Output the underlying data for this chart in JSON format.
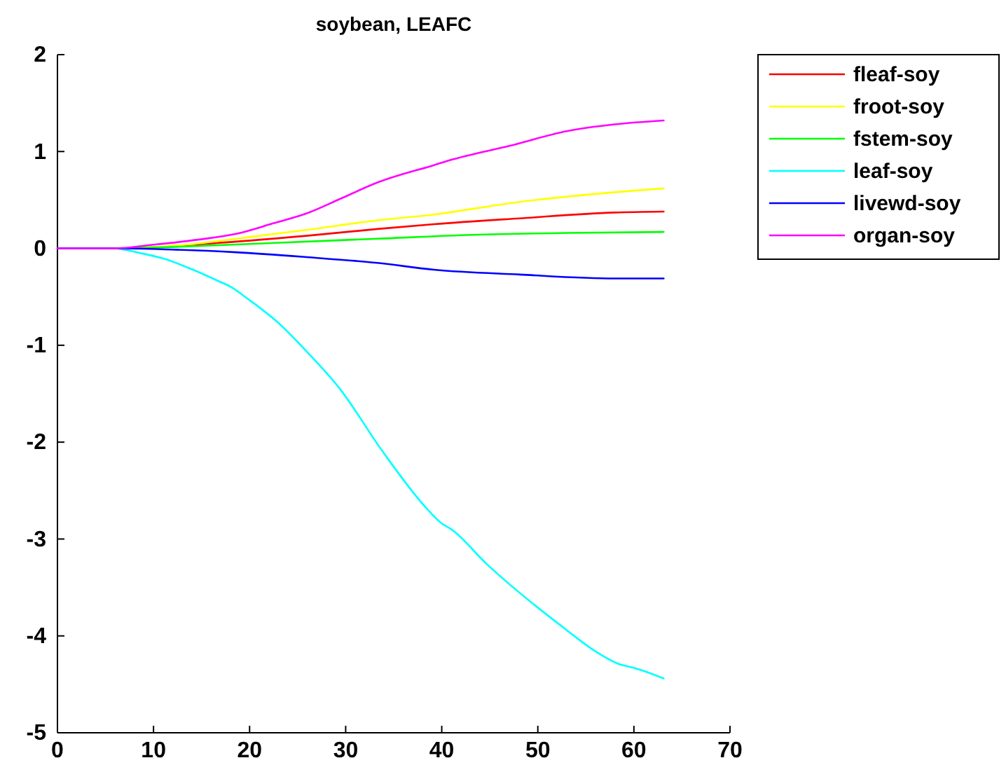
{
  "chart_data": {
    "type": "line",
    "title": "soybean, LEAFC",
    "xlim": [
      0,
      70
    ],
    "xticks": [
      0,
      10,
      20,
      30,
      40,
      50,
      60,
      70
    ],
    "ylim": [
      -5,
      2
    ],
    "yticks": [
      -5,
      -4,
      -3,
      -2,
      -1,
      0,
      1,
      2
    ],
    "legend": "top right",
    "grid": false,
    "series": [
      {
        "name": "fleaf-soy",
        "color": "#ff0000",
        "x": [
          0,
          5.8,
          18.6,
          25.9,
          33.3,
          39.2,
          48.1,
          58,
          63.1
        ],
        "values": [
          0,
          0,
          0.07,
          0.13,
          0.2,
          0.25,
          0.31,
          0.37,
          0.38
        ]
      },
      {
        "name": "froot-soy",
        "color": "#ffff00",
        "x": [
          0,
          5.8,
          13.6,
          18.6,
          25.9,
          33.3,
          39.2,
          48.1,
          58,
          63.1
        ],
        "values": [
          0,
          0,
          0.04,
          0.1,
          0.19,
          0.29,
          0.35,
          0.48,
          0.58,
          0.62
        ]
      },
      {
        "name": "fstem-soy",
        "color": "#00ff00",
        "x": [
          0,
          5.8,
          13.6,
          23.5,
          33.3,
          43.2,
          53,
          63.1
        ],
        "values": [
          0,
          0,
          0.02,
          0.06,
          0.1,
          0.14,
          0.16,
          0.17
        ]
      },
      {
        "name": "leaf-soy",
        "color": "#00ffff",
        "x": [
          0,
          5.8,
          8.7,
          11.2,
          14.1,
          16.6,
          18.1,
          19.8,
          23,
          25.9,
          29.4,
          33.8,
          38.3,
          40,
          41,
          44.7,
          53,
          56,
          58.4,
          60,
          63.1
        ],
        "values": [
          0,
          0,
          -0.05,
          -0.11,
          -0.22,
          -0.33,
          -0.4,
          -0.52,
          -0.77,
          -1.06,
          -1.45,
          -2.09,
          -2.67,
          -2.84,
          -2.9,
          -3.26,
          -3.94,
          -4.16,
          -4.29,
          -4.33,
          -4.44
        ]
      },
      {
        "name": "livewd-soy",
        "color": "#0000ff",
        "x": [
          0,
          5.8,
          11.2,
          18.6,
          25.9,
          33.3,
          39.2,
          48.1,
          58,
          63.1
        ],
        "values": [
          0,
          0,
          -0.01,
          -0.04,
          -0.09,
          -0.15,
          -0.22,
          -0.27,
          -0.31,
          -0.31
        ]
      },
      {
        "name": "organ-soy",
        "color": "#ff00ff",
        "x": [
          0,
          5.8,
          10.2,
          14.6,
          18.6,
          22.5,
          25.9,
          29.4,
          33.3,
          39.2,
          41.2,
          47.1,
          53,
          58,
          63.1
        ],
        "values": [
          0,
          0,
          0.04,
          0.09,
          0.15,
          0.26,
          0.36,
          0.51,
          0.68,
          0.86,
          0.92,
          1.06,
          1.21,
          1.28,
          1.32
        ]
      }
    ]
  }
}
